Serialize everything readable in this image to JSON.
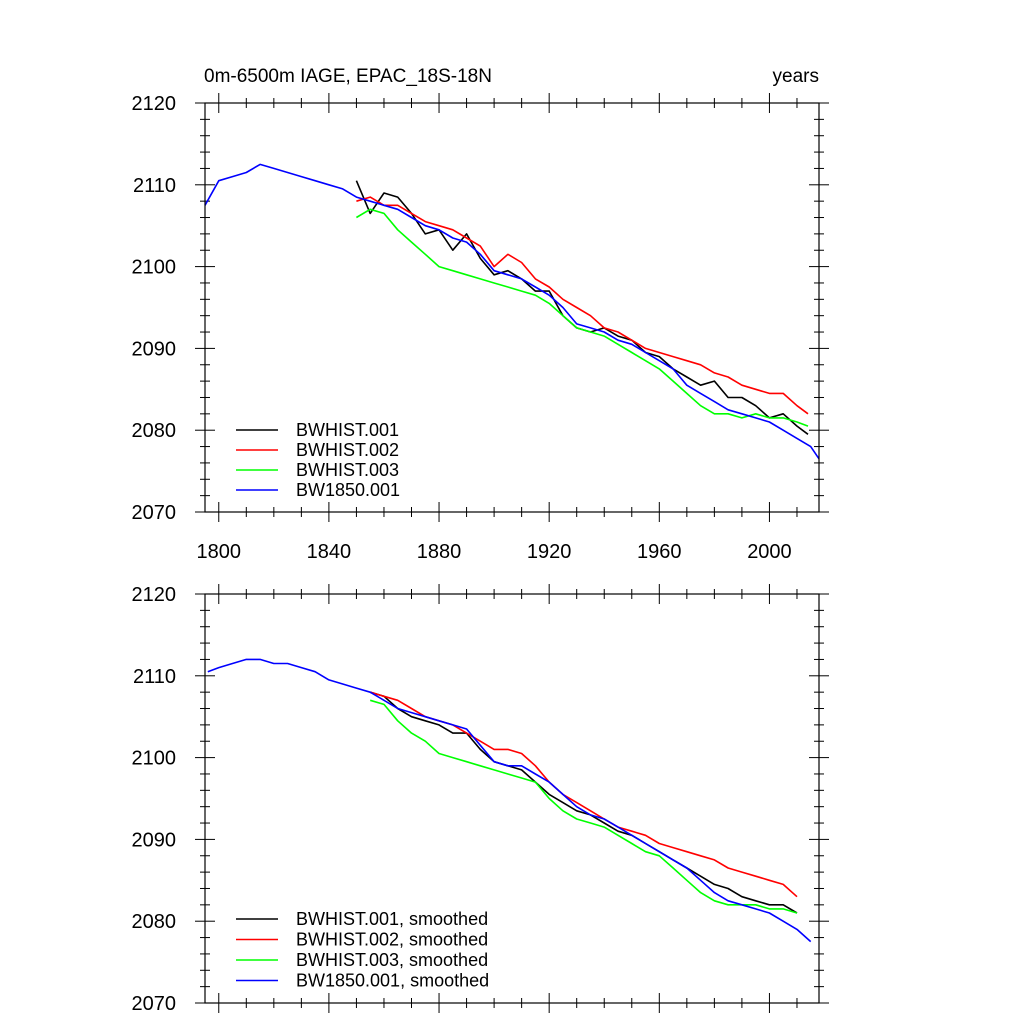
{
  "chart_data": [
    {
      "type": "line",
      "title": "0m-6500m IAGE, EPAC_18S-18N",
      "units": "years",
      "xlabel": "",
      "ylabel": "",
      "xlim": [
        1795,
        2018
      ],
      "ylim": [
        2070,
        2120
      ],
      "xticks": [
        1800,
        1840,
        1880,
        1920,
        1960,
        2000
      ],
      "yticks": [
        2070,
        2080,
        2090,
        2100,
        2110,
        2120
      ],
      "legend_position": "bottom-left",
      "series": [
        {
          "name": "BWHIST.001",
          "color": "#000000",
          "x": [
            1850,
            1855,
            1860,
            1865,
            1870,
            1875,
            1880,
            1885,
            1890,
            1895,
            1900,
            1905,
            1910,
            1915,
            1920,
            1925,
            1930,
            1935,
            1940,
            1945,
            1950,
            1955,
            1960,
            1965,
            1970,
            1975,
            1980,
            1985,
            1990,
            1995,
            2000,
            2005,
            2010,
            2014
          ],
          "y": [
            2110.5,
            2106.5,
            2109.0,
            2108.5,
            2106.5,
            2104.0,
            2104.5,
            2102.0,
            2104.0,
            2101.0,
            2099.0,
            2099.5,
            2098.5,
            2097.0,
            2097.0,
            2094.0,
            2092.5,
            2092.0,
            2092.5,
            2091.5,
            2091.0,
            2089.5,
            2089.0,
            2087.5,
            2086.5,
            2085.5,
            2086.0,
            2084.0,
            2084.0,
            2083.0,
            2081.5,
            2082.0,
            2080.5,
            2079.5
          ]
        },
        {
          "name": "BWHIST.002",
          "color": "#ff0000",
          "x": [
            1850,
            1855,
            1860,
            1865,
            1870,
            1875,
            1880,
            1885,
            1890,
            1895,
            1900,
            1905,
            1910,
            1915,
            1920,
            1925,
            1930,
            1935,
            1940,
            1945,
            1950,
            1955,
            1960,
            1965,
            1970,
            1975,
            1980,
            1985,
            1990,
            1995,
            2000,
            2005,
            2010,
            2014
          ],
          "y": [
            2108.0,
            2108.5,
            2107.5,
            2107.5,
            2106.5,
            2105.5,
            2105.0,
            2104.5,
            2103.5,
            2102.5,
            2100.0,
            2101.5,
            2100.5,
            2098.5,
            2097.5,
            2096.0,
            2095.0,
            2094.0,
            2092.5,
            2092.0,
            2091.0,
            2090.0,
            2089.5,
            2089.0,
            2088.5,
            2088.0,
            2087.0,
            2086.5,
            2085.5,
            2085.0,
            2084.5,
            2084.5,
            2083.0,
            2082.0
          ]
        },
        {
          "name": "BWHIST.003",
          "color": "#00ff00",
          "x": [
            1850,
            1855,
            1860,
            1865,
            1870,
            1875,
            1880,
            1885,
            1890,
            1895,
            1900,
            1905,
            1910,
            1915,
            1920,
            1925,
            1930,
            1935,
            1940,
            1945,
            1950,
            1955,
            1960,
            1965,
            1970,
            1975,
            1980,
            1985,
            1990,
            1995,
            2000,
            2005,
            2010,
            2014
          ],
          "y": [
            2106.0,
            2107.0,
            2106.5,
            2104.5,
            2103.0,
            2101.5,
            2100.0,
            2099.5,
            2099.0,
            2098.5,
            2098.0,
            2097.5,
            2097.0,
            2096.5,
            2095.5,
            2094.0,
            2092.5,
            2092.0,
            2091.5,
            2090.5,
            2089.5,
            2088.5,
            2087.5,
            2086.0,
            2084.5,
            2083.0,
            2082.0,
            2082.0,
            2081.5,
            2082.0,
            2081.5,
            2081.5,
            2081.0,
            2080.5
          ]
        },
        {
          "name": "BW1850.001",
          "color": "#0000ff",
          "x": [
            1795,
            1800,
            1805,
            1810,
            1815,
            1820,
            1825,
            1830,
            1835,
            1840,
            1845,
            1850,
            1855,
            1860,
            1865,
            1870,
            1875,
            1880,
            1885,
            1890,
            1895,
            1900,
            1905,
            1910,
            1915,
            1920,
            1925,
            1930,
            1935,
            1940,
            1945,
            1950,
            1955,
            1960,
            1965,
            1970,
            1975,
            1980,
            1985,
            1990,
            1995,
            2000,
            2005,
            2010,
            2015,
            2018
          ],
          "y": [
            2107.5,
            2110.5,
            2111.0,
            2111.5,
            2112.5,
            2112.0,
            2111.5,
            2111.0,
            2110.5,
            2110.0,
            2109.5,
            2108.5,
            2108.0,
            2107.5,
            2107.0,
            2106.0,
            2105.0,
            2104.5,
            2103.5,
            2103.0,
            2101.5,
            2099.5,
            2099.0,
            2098.5,
            2097.5,
            2096.5,
            2095.0,
            2093.0,
            2092.5,
            2092.0,
            2091.0,
            2090.5,
            2089.5,
            2088.5,
            2087.5,
            2085.5,
            2084.5,
            2083.5,
            2082.5,
            2082.0,
            2081.5,
            2081.0,
            2080.0,
            2079.0,
            2078.0,
            2076.5
          ]
        }
      ]
    },
    {
      "type": "line",
      "title": "",
      "xlabel": "",
      "ylabel": "",
      "xlim": [
        1795,
        2018
      ],
      "ylim": [
        2070,
        2120
      ],
      "xticks": [
        1800,
        1840,
        1880,
        1920,
        1960,
        2000
      ],
      "yticks": [
        2070,
        2080,
        2090,
        2100,
        2110,
        2120
      ],
      "legend_position": "bottom-left",
      "series": [
        {
          "name": "BWHIST.001, smoothed",
          "color": "#000000",
          "x": [
            1855,
            1860,
            1865,
            1870,
            1875,
            1880,
            1885,
            1890,
            1895,
            1900,
            1905,
            1910,
            1915,
            1920,
            1925,
            1930,
            1935,
            1940,
            1945,
            1950,
            1955,
            1960,
            1965,
            1970,
            1975,
            1980,
            1985,
            1990,
            1995,
            2000,
            2005,
            2010
          ],
          "y": [
            2108.0,
            2107.5,
            2106.0,
            2105.0,
            2104.5,
            2104.0,
            2103.0,
            2103.0,
            2101.0,
            2099.5,
            2099.0,
            2098.5,
            2097.0,
            2095.5,
            2094.5,
            2093.5,
            2093.0,
            2092.0,
            2091.0,
            2090.5,
            2089.5,
            2088.5,
            2087.5,
            2086.5,
            2085.5,
            2084.5,
            2084.0,
            2083.0,
            2082.5,
            2082.0,
            2082.0,
            2081.0
          ]
        },
        {
          "name": "BWHIST.002, smoothed",
          "color": "#ff0000",
          "x": [
            1855,
            1860,
            1865,
            1870,
            1875,
            1880,
            1885,
            1890,
            1895,
            1900,
            1905,
            1910,
            1915,
            1920,
            1925,
            1930,
            1935,
            1940,
            1945,
            1950,
            1955,
            1960,
            1965,
            1970,
            1975,
            1980,
            1985,
            1990,
            1995,
            2000,
            2005,
            2010
          ],
          "y": [
            2108.0,
            2107.5,
            2107.0,
            2106.0,
            2105.0,
            2104.5,
            2104.0,
            2103.0,
            2102.0,
            2101.0,
            2101.0,
            2100.5,
            2099.0,
            2097.0,
            2095.5,
            2094.5,
            2093.5,
            2092.5,
            2091.5,
            2091.0,
            2090.5,
            2089.5,
            2089.0,
            2088.5,
            2088.0,
            2087.5,
            2086.5,
            2086.0,
            2085.5,
            2085.0,
            2084.5,
            2083.0
          ]
        },
        {
          "name": "BWHIST.003, smoothed",
          "color": "#00ff00",
          "x": [
            1855,
            1860,
            1865,
            1870,
            1875,
            1880,
            1885,
            1890,
            1895,
            1900,
            1905,
            1910,
            1915,
            1920,
            1925,
            1930,
            1935,
            1940,
            1945,
            1950,
            1955,
            1960,
            1965,
            1970,
            1975,
            1980,
            1985,
            1990,
            1995,
            2000,
            2005,
            2010
          ],
          "y": [
            2107.0,
            2106.5,
            2104.5,
            2103.0,
            2102.0,
            2100.5,
            2100.0,
            2099.5,
            2099.0,
            2098.5,
            2098.0,
            2097.5,
            2097.0,
            2095.0,
            2093.5,
            2092.5,
            2092.0,
            2091.5,
            2090.5,
            2089.5,
            2088.5,
            2088.0,
            2086.5,
            2085.0,
            2083.5,
            2082.5,
            2082.0,
            2082.0,
            2082.0,
            2081.5,
            2081.5,
            2081.0
          ]
        },
        {
          "name": "BW1850.001, smoothed",
          "color": "#0000ff",
          "x": [
            1796,
            1800,
            1805,
            1810,
            1815,
            1820,
            1825,
            1830,
            1835,
            1840,
            1845,
            1850,
            1855,
            1860,
            1865,
            1870,
            1875,
            1880,
            1885,
            1890,
            1895,
            1900,
            1905,
            1910,
            1915,
            1920,
            1925,
            1930,
            1935,
            1940,
            1945,
            1950,
            1955,
            1960,
            1965,
            1970,
            1975,
            1980,
            1985,
            1990,
            1995,
            2000,
            2005,
            2010,
            2015
          ],
          "y": [
            2110.5,
            2111.0,
            2111.5,
            2112.0,
            2112.0,
            2111.5,
            2111.5,
            2111.0,
            2110.5,
            2109.5,
            2109.0,
            2108.5,
            2108.0,
            2107.0,
            2106.0,
            2105.5,
            2105.0,
            2104.5,
            2104.0,
            2103.5,
            2101.5,
            2099.5,
            2099.0,
            2099.0,
            2098.0,
            2097.0,
            2095.5,
            2094.0,
            2093.0,
            2092.5,
            2091.5,
            2090.5,
            2089.5,
            2088.5,
            2087.5,
            2086.5,
            2085.0,
            2083.5,
            2082.5,
            2082.0,
            2081.5,
            2081.0,
            2080.0,
            2079.0,
            2077.5
          ]
        }
      ]
    }
  ]
}
